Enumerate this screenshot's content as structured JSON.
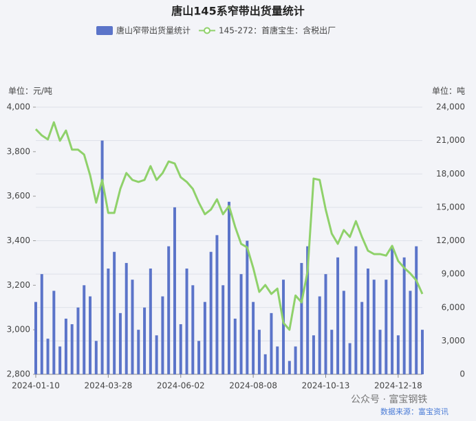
{
  "chart_data": {
    "type": "bar-line",
    "title": "唐山145系窄带出货量统计",
    "y_axis_label": "单位：元/吨",
    "y2_axis_label": "单位：吨",
    "watermark": "公众号 · 富宝钢铁",
    "source": "数据来源：富宝资讯",
    "categories": [
      "2024-01-10",
      null,
      null,
      null,
      null,
      null,
      null,
      null,
      null,
      null,
      null,
      null,
      "2024-03-28",
      null,
      null,
      null,
      null,
      null,
      null,
      null,
      null,
      null,
      null,
      null,
      "2024-06-02",
      null,
      null,
      null,
      null,
      null,
      null,
      null,
      null,
      null,
      null,
      null,
      "2024-08-08",
      null,
      null,
      null,
      null,
      null,
      null,
      null,
      null,
      null,
      null,
      null,
      "2024-10-13",
      null,
      null,
      null,
      null,
      null,
      null,
      null,
      null,
      null,
      null,
      null,
      "2024-12-18",
      null,
      null,
      null,
      null
    ],
    "series": [
      {
        "name": "唐山窄带出货量统计",
        "type": "bar",
        "axis": "y2",
        "color": "#5b74c9",
        "values": [
          6500,
          9000,
          3200,
          7500,
          2500,
          5000,
          4500,
          6000,
          8000,
          7000,
          3000,
          21000,
          9500,
          11000,
          5500,
          10000,
          8500,
          4000,
          6000,
          9500,
          3500,
          7000,
          11500,
          15000,
          4500,
          9500,
          8000,
          3000,
          6500,
          11000,
          12500,
          8000,
          15500,
          5000,
          9000,
          12000,
          6500,
          4000,
          1800,
          5500,
          2500,
          8500,
          1200,
          2500,
          10000,
          11500,
          3500,
          7000,
          9000,
          4000,
          10500,
          7500,
          2800,
          11500,
          6500,
          9500,
          8500,
          4000,
          8500,
          11500,
          3500,
          10500,
          7500,
          11500,
          4000
        ]
      },
      {
        "name": "145-272：首唐宝生：含税出厂",
        "type": "line",
        "axis": "y",
        "color": "#8fd16a",
        "values": [
          3901,
          3873,
          3855,
          3932,
          3849,
          3895,
          3809,
          3809,
          3787,
          3694,
          3571,
          3673,
          3525,
          3525,
          3633,
          3704,
          3673,
          3664,
          3673,
          3735,
          3673,
          3704,
          3756,
          3747,
          3685,
          3664,
          3633,
          3571,
          3519,
          3540,
          3586,
          3519,
          3556,
          3463,
          3386,
          3370,
          3278,
          3170,
          3201,
          3161,
          3185,
          3031,
          3000,
          3154,
          3123,
          3262,
          3679,
          3673,
          3540,
          3432,
          3386,
          3448,
          3417,
          3488,
          3417,
          3355,
          3340,
          3340,
          3333,
          3377,
          3309,
          3278,
          3253,
          3222,
          3161
        ]
      }
    ],
    "ylim": [
      2800,
      4000
    ],
    "yticks": [
      {
        "value": 2800,
        "label": "2,800"
      },
      {
        "value": 3000,
        "label": "3,000"
      },
      {
        "value": 3200,
        "label": "3,200"
      },
      {
        "value": 3400,
        "label": "3,400"
      },
      {
        "value": 3600,
        "label": "3,600"
      },
      {
        "value": 3800,
        "label": "3,800"
      },
      {
        "value": 4000,
        "label": "4,000"
      }
    ],
    "y2lim": [
      0,
      24000
    ],
    "y2ticks": [
      0,
      {
        "value": 3000,
        "label": "3,000"
      },
      {
        "value": 6000,
        "label": "6,000"
      },
      {
        "value": 9000,
        "label": "9,000"
      },
      {
        "value": 12000,
        "label": "12,000"
      },
      {
        "value": 15000,
        "label": "15,000"
      },
      {
        "value": 18000,
        "label": "18,000"
      },
      {
        "value": 21000,
        "label": "21,000"
      },
      {
        "value": 24000,
        "label": "24,000"
      }
    ],
    "grid": true
  }
}
